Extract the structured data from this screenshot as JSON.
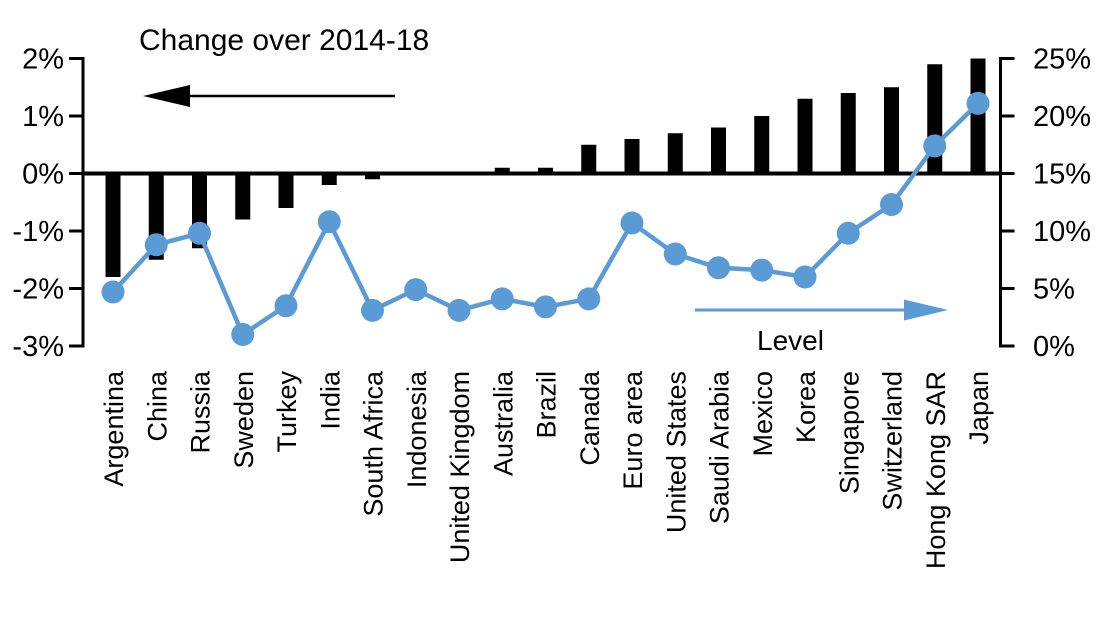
{
  "chart_data": {
    "type": "bar",
    "subtype": "combo-bar-line-dual-axis",
    "title": "Change over 2014-18",
    "categories": [
      "Argentina",
      "China",
      "Russia",
      "Sweden",
      "Turkey",
      "India",
      "South Africa",
      "Indonesia",
      "United Kingdom",
      "Australia",
      "Brazil",
      "Canada",
      "Euro area",
      "United States",
      "Saudi Arabia",
      "Mexico",
      "Korea",
      "Singapore",
      "Switzerland",
      "Hong Kong SAR",
      "Japan"
    ],
    "series": [
      {
        "name": "Change over 2014-18",
        "type": "bar",
        "axis": "left",
        "color": "#000000",
        "unit": "%",
        "values": [
          -1.8,
          -1.5,
          -1.3,
          -0.8,
          -0.6,
          -0.2,
          -0.1,
          0,
          0,
          0.1,
          0.1,
          0.5,
          0.6,
          0.7,
          0.8,
          1.0,
          1.3,
          1.4,
          1.5,
          1.9,
          2.0
        ]
      },
      {
        "name": "Level",
        "type": "line",
        "axis": "right",
        "color": "#5b9bd5",
        "unit": "%",
        "values": [
          4.7,
          8.8,
          9.8,
          1.0,
          3.5,
          10.8,
          3.1,
          4.9,
          3.1,
          4.1,
          3.4,
          4.1,
          10.7,
          8.0,
          6.8,
          6.6,
          6.0,
          9.8,
          12.3,
          17.4,
          21.1
        ]
      }
    ],
    "left_axis": {
      "tick_labels": [
        "2%",
        "1%",
        "0%",
        "-1%",
        "-2%",
        "-3%"
      ],
      "tick_values": [
        2,
        1,
        0,
        -1,
        -2,
        -3
      ],
      "min": -3,
      "max": 2
    },
    "right_axis": {
      "tick_labels": [
        "25%",
        "20%",
        "15%",
        "10%",
        "5%",
        "0%"
      ],
      "tick_values": [
        25,
        20,
        15,
        10,
        5,
        0
      ],
      "min": 0,
      "max": 25
    },
    "annotations": [
      {
        "text": "Change over 2014-18",
        "arrow_direction": "left",
        "arrow_color": "#000000"
      },
      {
        "text": "Level",
        "arrow_direction": "right",
        "arrow_color": "#5b9bd5"
      }
    ],
    "grid": false,
    "legend_position": "none",
    "background": "#ffffff"
  }
}
